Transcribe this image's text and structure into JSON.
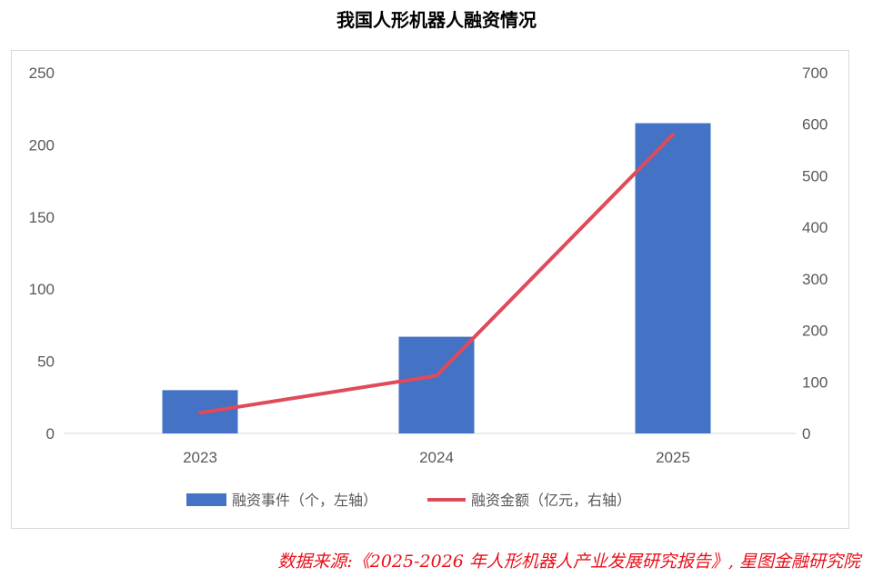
{
  "title": "我国人形机器人融资情况",
  "source": "数据来源:《2025-2026 年人形机器人产业发展研究报告》, 星图金融研究院",
  "chart_data": {
    "type": "bar",
    "title": "我国人形机器人融资情况",
    "categories": [
      "2023",
      "2024",
      "2025"
    ],
    "series": [
      {
        "name": "融资事件（个，左轴）",
        "type": "bar",
        "axis": "left",
        "color": "#4472c4",
        "values": [
          30,
          67,
          215
        ]
      },
      {
        "name": "融资金额（亿元，右轴）",
        "type": "line",
        "axis": "right",
        "color": "#e04a5a",
        "values": [
          40,
          112,
          580
        ]
      }
    ],
    "y_left": {
      "min": 0,
      "max": 250,
      "ticks": [
        0,
        50,
        100,
        150,
        200,
        250
      ]
    },
    "y_right": {
      "min": 0,
      "max": 700,
      "ticks": [
        0,
        100,
        200,
        300,
        400,
        500,
        600,
        700
      ]
    },
    "grid": false,
    "legend": "bottom"
  }
}
